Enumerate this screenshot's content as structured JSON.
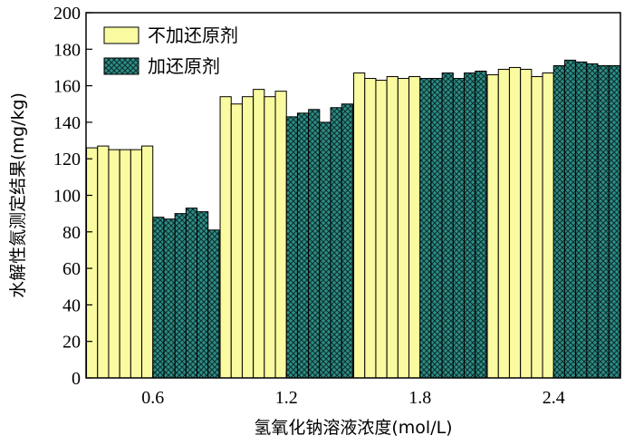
{
  "chart_data": {
    "type": "bar",
    "xlabel": "氢氧化钠溶液浓度(mol/L)",
    "ylabel": "水解性氮测定结果(mg/kg)",
    "ylim": [
      0,
      200
    ],
    "yticks": [
      "0",
      "20",
      "40",
      "60",
      "80",
      "100",
      "120",
      "140",
      "160",
      "180",
      "200"
    ],
    "categories": [
      "0.6",
      "1.2",
      "1.8",
      "2.4"
    ],
    "legend_position": "top-left",
    "series": [
      {
        "name": "不加还原剂",
        "color": "#fafaa0",
        "pattern": "solid",
        "values": [
          [
            126,
            127,
            125,
            125,
            125,
            127
          ],
          [
            154,
            150,
            154,
            158,
            154,
            157
          ],
          [
            167,
            164,
            163,
            165,
            164,
            165
          ],
          [
            166,
            169,
            170,
            169,
            165,
            167
          ]
        ]
      },
      {
        "name": "加还原剂",
        "color": "#2e8e88",
        "pattern": "crosshatch",
        "values": [
          [
            88,
            87,
            90,
            93,
            91,
            81
          ],
          [
            143,
            145,
            147,
            140,
            148,
            150
          ],
          [
            164,
            164,
            167,
            164,
            167,
            168
          ],
          [
            171,
            174,
            173,
            172,
            171,
            171
          ]
        ]
      }
    ]
  }
}
